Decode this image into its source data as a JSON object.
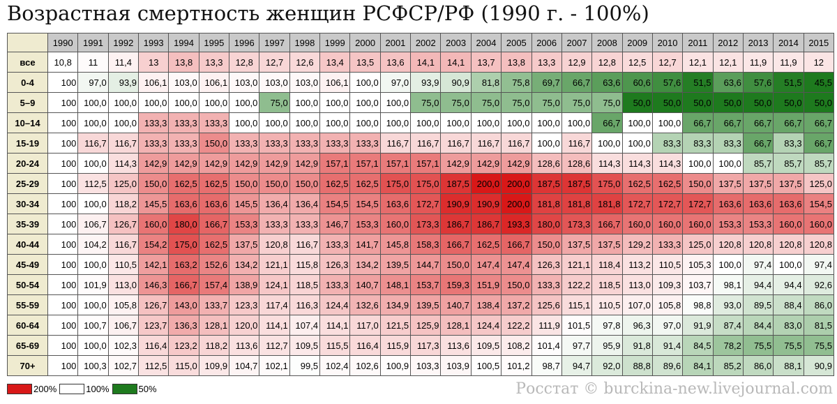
{
  "title": "Возрастная смертность женщин РСФСР/РФ (1990 г. - 100%)",
  "table": {
    "columns": [
      "1990",
      "1991",
      "1992",
      "1993",
      "1994",
      "1995",
      "1996",
      "1997",
      "1998",
      "1999",
      "2000",
      "2001",
      "2002",
      "2003",
      "2004",
      "2005",
      "2006",
      "2007",
      "2008",
      "2009",
      "2010",
      "2011",
      "2012",
      "2013",
      "2014",
      "2015"
    ],
    "rows": [
      {
        "label": "все",
        "relative": true,
        "cells": [
          "10,8",
          "11",
          "11,4",
          "13",
          "13,8",
          "13,3",
          "12,8",
          "12,7",
          "12,6",
          "13,4",
          "13,5",
          "13,6",
          "14,1",
          "14,1",
          "13,7",
          "13,8",
          "13,3",
          "12,9",
          "12,8",
          "12,5",
          "12,7",
          "12,1",
          "12,1",
          "11,9",
          "11,9",
          "12"
        ]
      },
      {
        "label": "0-4",
        "cells": [
          "100",
          "97,0",
          "93,9",
          "106,1",
          "103,0",
          "106,1",
          "103,0",
          "103,0",
          "103,0",
          "106,1",
          "100,0",
          "97,0",
          "93,9",
          "90,9",
          "81,8",
          "75,8",
          "69,7",
          "66,7",
          "63,6",
          "60,6",
          "57,6",
          "51,5",
          "63,6",
          "57,6",
          "51,5",
          "45,5"
        ]
      },
      {
        "label": "5–9",
        "cells": [
          "100",
          "100,0",
          "100,0",
          "100,0",
          "100,0",
          "100,0",
          "100,0",
          "75,0",
          "100,0",
          "100,0",
          "100,0",
          "100,0",
          "75,0",
          "75,0",
          "75,0",
          "75,0",
          "75,0",
          "75,0",
          "75,0",
          "50,0",
          "50,0",
          "50,0",
          "50,0",
          "50,0",
          "50,0",
          "50,0"
        ]
      },
      {
        "label": "10–14",
        "cells": [
          "100",
          "100,0",
          "100,0",
          "133,3",
          "133,3",
          "133,3",
          "100,0",
          "100,0",
          "100,0",
          "100,0",
          "100,0",
          "100,0",
          "100,0",
          "100,0",
          "100,0",
          "100,0",
          "100,0",
          "100,0",
          "66,7",
          "100,0",
          "100,0",
          "66,7",
          "66,7",
          "66,7",
          "66,7",
          "66,7"
        ]
      },
      {
        "label": "15-19",
        "cells": [
          "100",
          "116,7",
          "116,7",
          "133,3",
          "133,3",
          "150,0",
          "133,3",
          "133,3",
          "133,3",
          "133,3",
          "133,3",
          "116,7",
          "116,7",
          "116,7",
          "116,7",
          "116,7",
          "100,0",
          "116,7",
          "100,0",
          "100,0",
          "83,3",
          "83,3",
          "83,3",
          "66,7",
          "83,3",
          "66,7"
        ]
      },
      {
        "label": "20-24",
        "cells": [
          "100",
          "100,0",
          "114,3",
          "142,9",
          "142,9",
          "142,9",
          "142,9",
          "142,9",
          "142,9",
          "157,1",
          "157,1",
          "157,1",
          "157,1",
          "142,9",
          "142,9",
          "142,9",
          "128,6",
          "128,6",
          "114,3",
          "114,3",
          "114,3",
          "100,0",
          "100,0",
          "85,7",
          "85,7",
          "85,7"
        ]
      },
      {
        "label": "25-29",
        "cells": [
          "100",
          "112,5",
          "125,0",
          "150,0",
          "162,5",
          "162,5",
          "150,0",
          "150,0",
          "150,0",
          "162,5",
          "162,5",
          "175,0",
          "175,0",
          "187,5",
          "200,0",
          "200,0",
          "187,5",
          "187,5",
          "175,0",
          "162,5",
          "162,5",
          "150,0",
          "137,5",
          "137,5",
          "137,5",
          "125,0"
        ]
      },
      {
        "label": "30-34",
        "cells": [
          "100",
          "100,0",
          "118,2",
          "145,5",
          "163,6",
          "163,6",
          "145,5",
          "136,4",
          "136,4",
          "154,5",
          "154,5",
          "163,6",
          "172,7",
          "190,9",
          "190,9",
          "200,0",
          "181,8",
          "181,8",
          "181,8",
          "172,7",
          "172,7",
          "172,7",
          "163,6",
          "163,6",
          "163,6",
          "154,5"
        ]
      },
      {
        "label": "35-39",
        "cells": [
          "100",
          "106,7",
          "126,7",
          "160,0",
          "180,0",
          "166,7",
          "153,3",
          "133,3",
          "133,3",
          "146,7",
          "153,3",
          "160,0",
          "173,3",
          "186,7",
          "186,7",
          "193,3",
          "180,0",
          "173,3",
          "166,7",
          "160,0",
          "160,0",
          "160,0",
          "153,3",
          "153,3",
          "160,0",
          "160,0"
        ]
      },
      {
        "label": "40-44",
        "cells": [
          "100",
          "104,2",
          "116,7",
          "154,2",
          "175,0",
          "162,5",
          "137,5",
          "120,8",
          "116,7",
          "133,3",
          "141,7",
          "145,8",
          "158,3",
          "166,7",
          "162,5",
          "166,7",
          "150,0",
          "137,5",
          "137,5",
          "129,2",
          "133,3",
          "125,0",
          "120,8",
          "120,8",
          "120,8",
          "120,8"
        ]
      },
      {
        "label": "45-49",
        "cells": [
          "100",
          "100,0",
          "110,5",
          "142,1",
          "163,2",
          "152,6",
          "134,2",
          "121,1",
          "115,8",
          "126,3",
          "134,2",
          "139,5",
          "144,7",
          "150,0",
          "147,4",
          "147,4",
          "126,3",
          "121,1",
          "118,4",
          "113,2",
          "110,5",
          "105,3",
          "100,0",
          "97,4",
          "100,0",
          "97,4"
        ]
      },
      {
        "label": "50-54",
        "cells": [
          "100",
          "101,9",
          "113,0",
          "146,3",
          "166,7",
          "157,4",
          "138,9",
          "124,1",
          "118,5",
          "133,3",
          "140,7",
          "148,1",
          "153,7",
          "159,3",
          "151,9",
          "150,0",
          "133,3",
          "122,2",
          "118,5",
          "113,0",
          "109,3",
          "103,7",
          "98,1",
          "94,4",
          "94,4",
          "92,6"
        ]
      },
      {
        "label": "55-59",
        "cells": [
          "100",
          "100,0",
          "105,8",
          "126,7",
          "143,0",
          "133,7",
          "123,3",
          "117,4",
          "116,3",
          "124,4",
          "132,6",
          "134,9",
          "139,5",
          "140,7",
          "138,4",
          "137,2",
          "125,6",
          "115,1",
          "110,5",
          "107,0",
          "105,8",
          "98,8",
          "93,0",
          "89,5",
          "88,4",
          "86,0"
        ]
      },
      {
        "label": "60-64",
        "cells": [
          "100",
          "100,7",
          "106,7",
          "123,7",
          "136,3",
          "128,1",
          "120,0",
          "114,1",
          "107,4",
          "114,1",
          "117,0",
          "121,5",
          "125,9",
          "128,1",
          "124,4",
          "122,2",
          "111,9",
          "101,5",
          "97,8",
          "96,3",
          "97,0",
          "91,9",
          "87,4",
          "84,4",
          "83,0",
          "81,5"
        ]
      },
      {
        "label": "65-69",
        "cells": [
          "100",
          "100,0",
          "102,3",
          "116,4",
          "123,2",
          "118,2",
          "113,6",
          "112,7",
          "109,5",
          "115,5",
          "116,4",
          "115,9",
          "117,3",
          "113,6",
          "109,5",
          "108,2",
          "101,4",
          "97,7",
          "95,9",
          "91,8",
          "91,4",
          "84,5",
          "78,2",
          "75,5",
          "75,5",
          "75,5"
        ]
      },
      {
        "label": "70+",
        "cells": [
          "100",
          "100,3",
          "102,7",
          "112,5",
          "115,0",
          "109,9",
          "104,7",
          "102,1",
          "99,5",
          "102,4",
          "102,6",
          "100,9",
          "103,3",
          "103,9",
          "100,5",
          "101,2",
          "98,7",
          "94,7",
          "92,0",
          "88,8",
          "89,6",
          "84,1",
          "85,2",
          "86,0",
          "88,1",
          "90,9"
        ]
      }
    ]
  },
  "legend": [
    {
      "value": 200,
      "label": "200%",
      "color": "#d81818"
    },
    {
      "value": 100,
      "label": "100%",
      "color": "#ffffff"
    },
    {
      "value": 50,
      "label": "50%",
      "color": "#1e7a1e"
    }
  ],
  "source": "Росстат © burckina-new.livejournal.com"
}
